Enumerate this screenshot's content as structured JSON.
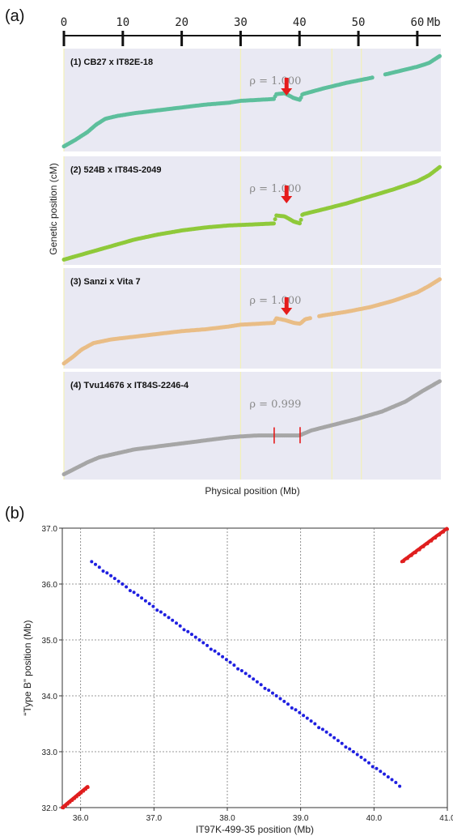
{
  "panel_labels": [
    "(a)",
    "(b)"
  ],
  "chart_data": [
    {
      "type": "scatter",
      "panel": "(a)",
      "top_axis": {
        "ticks": [
          0,
          10,
          20,
          30,
          40,
          50,
          60
        ],
        "unit_label": "Mb",
        "xlim": [
          0,
          64
        ]
      },
      "xlabel": "Physical position (Mb)",
      "ylabel": "Genetic position (cM)",
      "vertical_guides_mb": [
        30,
        45.5,
        50.5
      ],
      "inversion_region_mb": [
        35.7,
        40.1
      ],
      "series": [
        {
          "name": "(1) CB27 x IT82E-18",
          "rho": "ρ = 1.000",
          "color": "#5dbf9c",
          "marker": "arrow",
          "arrow_at_mb": 37.8,
          "points": [
            [
              0,
              0.02
            ],
            [
              2,
              0.09
            ],
            [
              4,
              0.17
            ],
            [
              5.5,
              0.25
            ],
            [
              7,
              0.31
            ],
            [
              9,
              0.34
            ],
            [
              12,
              0.37
            ],
            [
              16,
              0.4
            ],
            [
              20,
              0.43
            ],
            [
              24,
              0.46
            ],
            [
              28,
              0.48
            ],
            [
              30,
              0.5
            ],
            [
              33,
              0.51
            ],
            [
              35.7,
              0.52
            ],
            [
              36,
              0.57
            ],
            [
              37.5,
              0.58
            ],
            [
              39,
              0.53
            ],
            [
              40.1,
              0.51
            ],
            [
              40.5,
              0.57
            ],
            [
              44,
              0.63
            ],
            [
              48,
              0.69
            ],
            [
              52,
              0.74
            ],
            [
              56,
              0.8
            ],
            [
              60,
              0.86
            ],
            [
              62,
              0.9
            ],
            [
              64,
              0.98
            ]
          ]
        },
        {
          "name": "(2) 524B x IT84S-2049",
          "rho": "ρ = 1.000",
          "color": "#8fc93a",
          "marker": "arrow",
          "arrow_at_mb": 37.8,
          "points": [
            [
              0,
              0.02
            ],
            [
              3,
              0.07
            ],
            [
              6,
              0.12
            ],
            [
              9,
              0.17
            ],
            [
              12,
              0.22
            ],
            [
              16,
              0.27
            ],
            [
              20,
              0.31
            ],
            [
              24,
              0.34
            ],
            [
              28,
              0.36
            ],
            [
              32,
              0.37
            ],
            [
              35.7,
              0.38
            ],
            [
              36,
              0.46
            ],
            [
              37.5,
              0.45
            ],
            [
              39,
              0.4
            ],
            [
              40.1,
              0.38
            ],
            [
              40.5,
              0.47
            ],
            [
              44,
              0.52
            ],
            [
              48,
              0.58
            ],
            [
              52,
              0.65
            ],
            [
              56,
              0.72
            ],
            [
              60,
              0.8
            ],
            [
              62,
              0.86
            ],
            [
              64,
              0.95
            ]
          ]
        },
        {
          "name": "(3) Sanzi x Vita 7",
          "rho": "ρ = 1.000",
          "color": "#e9bd86",
          "marker": "arrow",
          "arrow_at_mb": 37.8,
          "points": [
            [
              0,
              0.02
            ],
            [
              1.5,
              0.09
            ],
            [
              3,
              0.17
            ],
            [
              5,
              0.24
            ],
            [
              8,
              0.28
            ],
            [
              12,
              0.31
            ],
            [
              16,
              0.34
            ],
            [
              20,
              0.37
            ],
            [
              24,
              0.39
            ],
            [
              28,
              0.42
            ],
            [
              30,
              0.44
            ],
            [
              33,
              0.45
            ],
            [
              35.7,
              0.46
            ],
            [
              36,
              0.51
            ],
            [
              37.5,
              0.49
            ],
            [
              39,
              0.46
            ],
            [
              40.1,
              0.45
            ],
            [
              41,
              0.5
            ],
            [
              44,
              0.54
            ],
            [
              48,
              0.58
            ],
            [
              52,
              0.63
            ],
            [
              56,
              0.7
            ],
            [
              60,
              0.79
            ],
            [
              62,
              0.86
            ],
            [
              64,
              0.94
            ]
          ]
        },
        {
          "name": "(4) Tvu14676 x IT84S-2246-4",
          "rho": "ρ = 0.999",
          "color": "#a6a6a6",
          "marker": "bars",
          "bars_at_mb": [
            35.7,
            40.1
          ],
          "points": [
            [
              0,
              0.02
            ],
            [
              2,
              0.08
            ],
            [
              4,
              0.14
            ],
            [
              6,
              0.19
            ],
            [
              9,
              0.23
            ],
            [
              12,
              0.27
            ],
            [
              16,
              0.3
            ],
            [
              20,
              0.33
            ],
            [
              24,
              0.36
            ],
            [
              28,
              0.39
            ],
            [
              30,
              0.4
            ],
            [
              33,
              0.41
            ],
            [
              36,
              0.41
            ],
            [
              40,
              0.41
            ],
            [
              42,
              0.46
            ],
            [
              46,
              0.52
            ],
            [
              50,
              0.58
            ],
            [
              54,
              0.65
            ],
            [
              58,
              0.75
            ],
            [
              61,
              0.86
            ],
            [
              64,
              0.96
            ]
          ]
        }
      ]
    },
    {
      "type": "scatter",
      "panel": "(b)",
      "xlabel": "IT97K-499-35 position (Mb)",
      "ylabel": "“Type B” position (Mb)",
      "xlim": [
        35.75,
        41.0
      ],
      "ylim": [
        32.0,
        37.0
      ],
      "x_ticks": [
        36.0,
        37.0,
        38.0,
        39.0,
        40.0,
        41.0
      ],
      "y_ticks": [
        32.0,
        33.0,
        34.0,
        35.0,
        36.0,
        37.0
      ],
      "x_tick_labels": [
        "36.0",
        "37.0",
        "38.0",
        "39.0",
        "40.0",
        "41.0"
      ],
      "y_tick_labels": [
        "32.0",
        "33.0",
        "34.0",
        "35.0",
        "36.0",
        "37.0"
      ],
      "grid": true,
      "series": [
        {
          "color": "#1f1fe0",
          "points": [
            [
              36.15,
              36.4
            ],
            [
              40.35,
              32.4
            ]
          ]
        },
        {
          "color": "#e01f1f",
          "points": [
            [
              35.75,
              32.0
            ],
            [
              36.1,
              32.38
            ]
          ]
        },
        {
          "color": "#e01f1f",
          "points": [
            [
              40.38,
              36.4
            ],
            [
              41.0,
              37.0
            ]
          ]
        }
      ]
    }
  ]
}
